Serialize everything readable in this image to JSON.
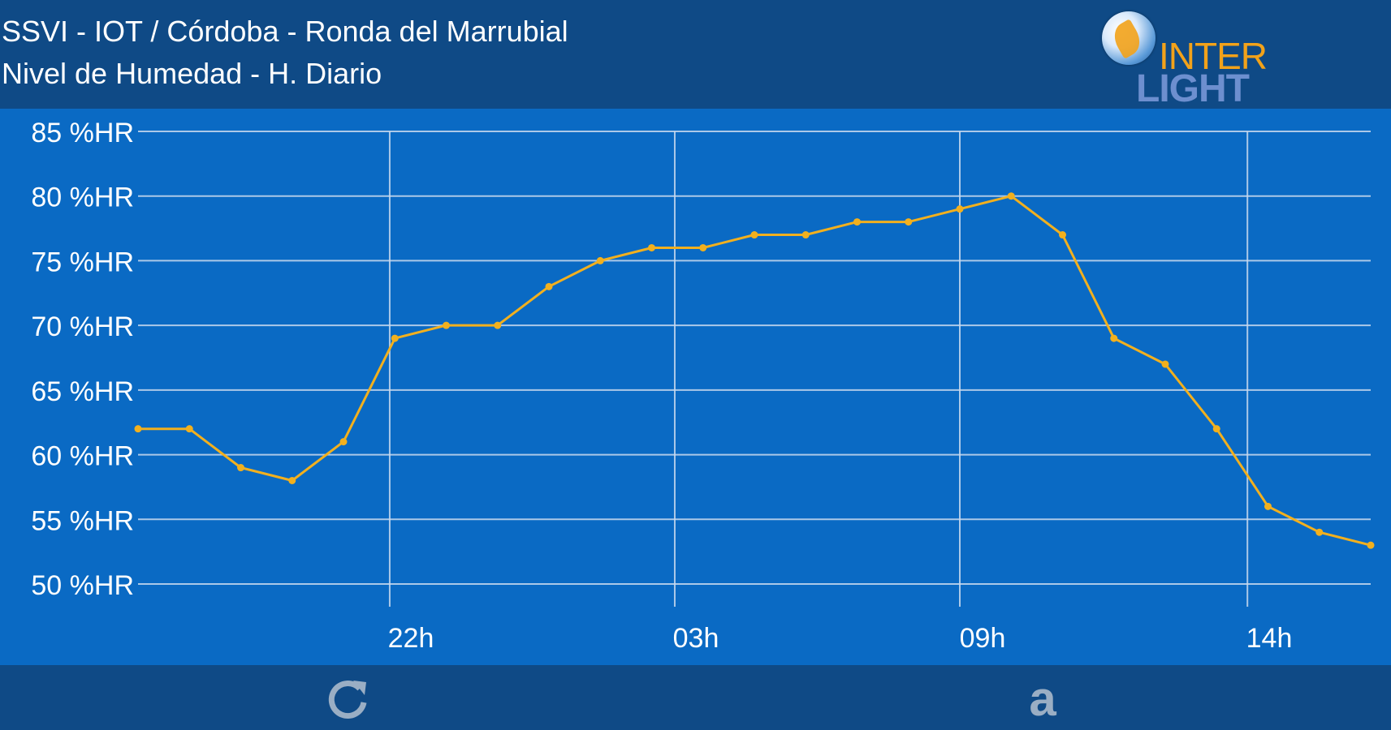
{
  "header": {
    "line1": "SSVI - IOT / Córdoba - Ronda del Marrubial",
    "line2": "Nivel de Humedad - H. Diario",
    "logo_top": "INTER",
    "logo_bottom": "LIGHT"
  },
  "colors": {
    "header_bg": "#0f4a86",
    "chart_bg": "#0a6ac4",
    "line": "#f2b01e",
    "grid": "#c9d9ee",
    "text": "#ffffff"
  },
  "chart_data": {
    "type": "line",
    "title": "",
    "xlabel": "",
    "ylabel": "",
    "ylim": [
      50,
      85
    ],
    "y_ticks": [
      "50 %HR",
      "55 %HR",
      "60 %HR",
      "65 %HR",
      "70 %HR",
      "75 %HR",
      "80 %HR",
      "85 %HR"
    ],
    "x_ticks": [
      "22h",
      "03h",
      "09h",
      "14h"
    ],
    "grid": true,
    "series": [
      {
        "values": [
          62,
          62,
          59,
          58,
          61,
          69,
          70,
          70,
          73,
          75,
          76,
          76,
          77,
          77,
          78,
          78,
          79,
          80,
          77,
          69,
          67,
          62,
          56,
          54,
          53
        ]
      }
    ]
  },
  "toolbar": {
    "refresh_icon": "refresh-icon",
    "a_label": "a"
  }
}
